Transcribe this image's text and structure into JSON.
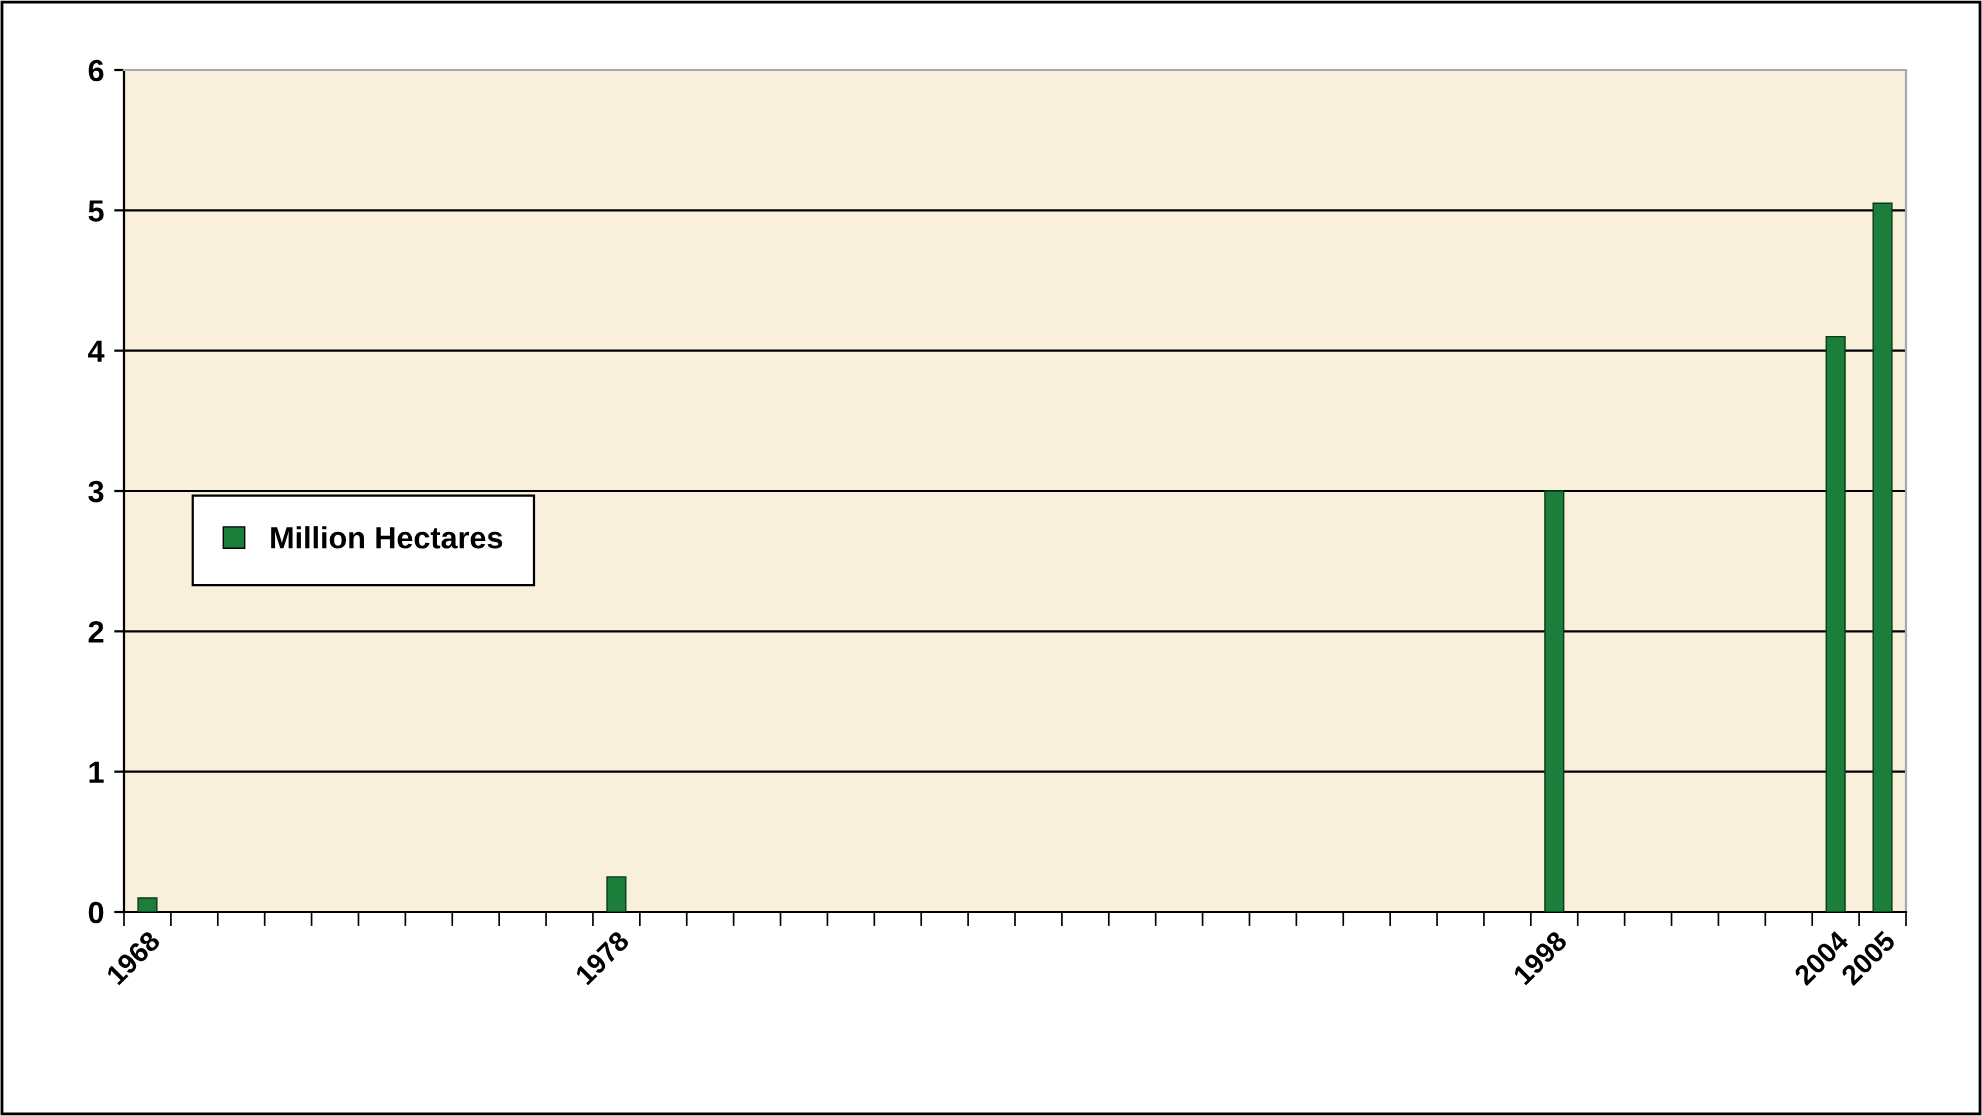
{
  "chart_data": {
    "type": "bar",
    "categories": [
      "1968",
      null,
      null,
      null,
      null,
      null,
      null,
      null,
      null,
      null,
      "1978",
      null,
      null,
      null,
      null,
      null,
      null,
      null,
      null,
      null,
      null,
      null,
      null,
      null,
      null,
      null,
      null,
      null,
      null,
      null,
      "1998",
      null,
      null,
      null,
      null,
      null,
      "2004",
      "2005"
    ],
    "series": [
      {
        "name": "Million Hectares",
        "color": "#1b7f3b",
        "values": [
          0.1,
          null,
          null,
          null,
          null,
          null,
          null,
          null,
          null,
          null,
          0.25,
          null,
          null,
          null,
          null,
          null,
          null,
          null,
          null,
          null,
          null,
          null,
          null,
          null,
          null,
          null,
          null,
          null,
          null,
          null,
          3.0,
          null,
          null,
          null,
          null,
          null,
          4.1,
          5.05
        ]
      }
    ],
    "ylim": [
      0,
      6
    ],
    "yticks": [
      0,
      1,
      2,
      3,
      4,
      5,
      6
    ],
    "grid": "y",
    "legend": "left"
  }
}
